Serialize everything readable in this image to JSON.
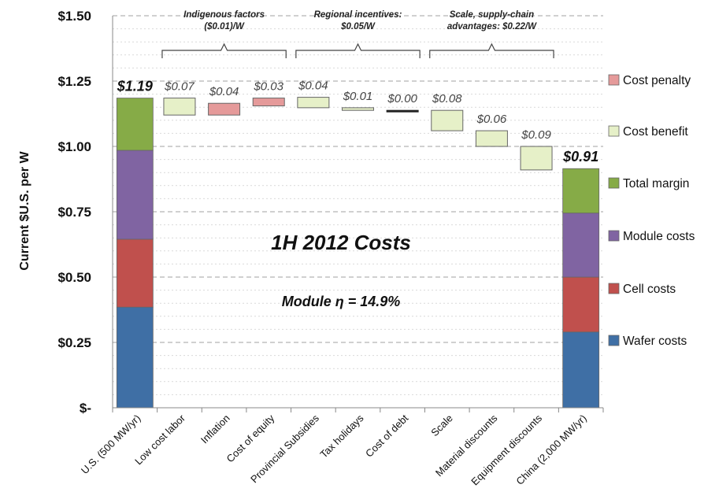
{
  "chart_data": {
    "type": "bar",
    "subtype": "waterfall",
    "ylabel": "Current $U.S. per W",
    "ylim": [
      0,
      1.5
    ],
    "yticks": [
      {
        "value": 0,
        "label": "$-"
      },
      {
        "value": 0.25,
        "label": "$0.25"
      },
      {
        "value": 0.5,
        "label": "$0.50"
      },
      {
        "value": 0.75,
        "label": "$0.75"
      },
      {
        "value": 1.0,
        "label": "$1.00"
      },
      {
        "value": 1.25,
        "label": "$1.25"
      },
      {
        "value": 1.5,
        "label": "$1.50"
      }
    ],
    "grid": true,
    "legend_position": "right",
    "categories": [
      "U.S. (500 MW/yr)",
      "Low cost labor",
      "Inflation",
      "Cost of equity",
      "Provincial Subsidies",
      "Tax holidays",
      "Cost of debt",
      "Scale",
      "Material discounts",
      "Equipment discounts",
      "China (2,000 MW/yr)"
    ],
    "stacked_totals": [
      {
        "category": "U.S. (500 MW/yr)",
        "total_label": "$1.19",
        "components": {
          "Wafer costs": 0.385,
          "Cell costs": 0.26,
          "Module costs": 0.34,
          "Total margin": 0.2
        }
      },
      {
        "category": "China (2,000 MW/yr)",
        "total_label": "$0.91",
        "components": {
          "Wafer costs": 0.29,
          "Cell costs": 0.21,
          "Module costs": 0.245,
          "Total margin": 0.17
        }
      }
    ],
    "steps": [
      {
        "category": "Low cost labor",
        "kind": "Cost benefit",
        "low": 1.12,
        "high": 1.185,
        "label": "$0.07"
      },
      {
        "category": "Inflation",
        "kind": "Cost penalty",
        "low": 1.12,
        "high": 1.165,
        "label": "$0.04"
      },
      {
        "category": "Cost of equity",
        "kind": "Cost penalty",
        "low": 1.155,
        "high": 1.185,
        "label": "$0.03"
      },
      {
        "category": "Provincial Subsidies",
        "kind": "Cost benefit",
        "low": 1.148,
        "high": 1.188,
        "label": "$0.04"
      },
      {
        "category": "Tax holidays",
        "kind": "Cost benefit",
        "low": 1.138,
        "high": 1.148,
        "label": "$0.01"
      },
      {
        "category": "Cost of debt",
        "kind": "Cost benefit",
        "low": 1.136,
        "high": 1.138,
        "label": "$0.00"
      },
      {
        "category": "Scale",
        "kind": "Cost benefit",
        "low": 1.06,
        "high": 1.138,
        "label": "$0.08"
      },
      {
        "category": "Material discounts",
        "kind": "Cost benefit",
        "low": 1.0,
        "high": 1.06,
        "label": "$0.06"
      },
      {
        "category": "Equipment discounts",
        "kind": "Cost benefit",
        "low": 0.91,
        "high": 1.0,
        "label": "$0.09"
      }
    ],
    "legend": [
      {
        "name": "Cost penalty",
        "color": "#e59a9a"
      },
      {
        "name": "Cost benefit",
        "color": "#e6f0c8"
      },
      {
        "name": "Total margin",
        "color": "#86ab47"
      },
      {
        "name": "Module costs",
        "color": "#8064a2"
      },
      {
        "name": "Cell costs",
        "color": "#c0504d"
      },
      {
        "name": "Wafer costs",
        "color": "#3f6fa5"
      }
    ],
    "annotations": [
      {
        "text_lines": [
          "Indigenous factors",
          "($0.01)/W"
        ],
        "from": "Low cost labor",
        "to": "Cost of equity"
      },
      {
        "text_lines": [
          "Regional incentives:",
          "$0.05/W"
        ],
        "from": "Provincial Subsidies",
        "to": "Cost of debt"
      },
      {
        "text_lines": [
          "Scale, supply-chain",
          "advantages: $0.22/W"
        ],
        "from": "Scale",
        "to": "Equipment discounts"
      }
    ],
    "overlay_text": [
      "1H 2012 Costs",
      "Module η = 14.9%"
    ]
  }
}
